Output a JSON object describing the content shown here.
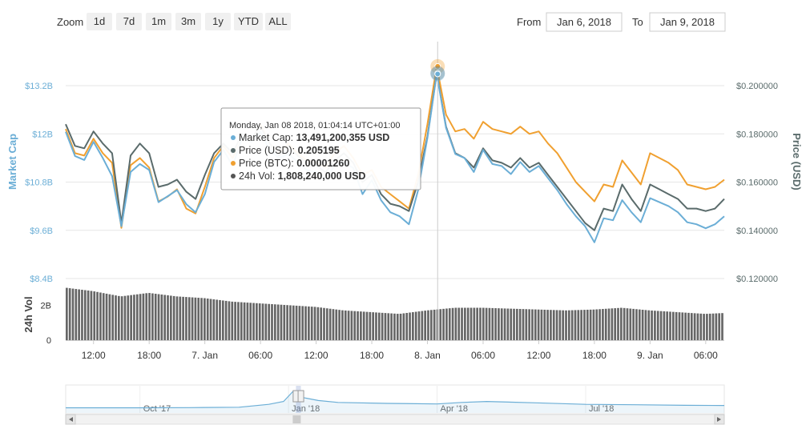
{
  "toolbar": {
    "zoom_label": "Zoom",
    "zoom_buttons": [
      "1d",
      "7d",
      "1m",
      "3m",
      "1y",
      "YTD",
      "ALL"
    ],
    "from_label": "From",
    "from_value": "Jan 6, 2018",
    "to_label": "To",
    "to_value": "Jan 9, 2018"
  },
  "tooltip": {
    "header": "Monday, Jan 08 2018, 01:04:14 UTC+01:00",
    "rows": [
      {
        "label": "Market Cap: ",
        "value": "13,491,200,355 USD",
        "color": "#6baed6"
      },
      {
        "label": "Price (USD): ",
        "value": "0.205195",
        "color": "#5a6b6b"
      },
      {
        "label": "Price (BTC): ",
        "value": "0.00001260",
        "color": "#f0a030"
      },
      {
        "label": "24h Vol: ",
        "value": "1,808,240,000 USD",
        "color": "#555555"
      }
    ]
  },
  "colors": {
    "market_cap": "#6baed6",
    "price_usd": "#5a6b6b",
    "price_btc": "#f0a030",
    "volume": "#666666",
    "navigator": "#6baed6",
    "left_axis": "#6baed6",
    "right_axis": "#5a6b6b"
  },
  "chart_data": {
    "type": "line",
    "x_range": [
      "Jan 6, 2018 09:00",
      "Jan 9, 2018 08:00"
    ],
    "left_axis": {
      "title": "Market Cap",
      "ticks": [
        "$13.2B",
        "$12B",
        "$10.8B",
        "$9.6B",
        "$8.4B"
      ],
      "tick_values": [
        13.2,
        12.0,
        10.8,
        9.6,
        8.4
      ],
      "range": [
        8.4,
        13.2
      ]
    },
    "right_axis": {
      "title": "Price (USD)",
      "ticks": [
        "$0.200000",
        "$0.180000",
        "$0.160000",
        "$0.140000",
        "$0.120000"
      ],
      "tick_values": [
        0.2,
        0.18,
        0.16,
        0.14,
        0.12
      ],
      "range": [
        0.12,
        0.2
      ]
    },
    "volume_axis": {
      "title": "24h Vol",
      "ticks": [
        "2B",
        "0"
      ],
      "tick_values": [
        2,
        0
      ],
      "range": [
        0,
        3.2
      ]
    },
    "x_ticks": [
      "12:00",
      "18:00",
      "7. Jan",
      "06:00",
      "12:00",
      "18:00",
      "8. Jan",
      "06:00",
      "12:00",
      "18:00",
      "9. Jan",
      "06:00"
    ],
    "x_tick_hours": [
      12,
      18,
      24,
      30,
      36,
      42,
      48,
      54,
      60,
      66,
      72,
      78
    ],
    "x_hour_range": [
      9,
      80
    ],
    "crosshair_hour": 49.1,
    "series": [
      {
        "name": "Market Cap",
        "key": "market_cap",
        "axis": "left",
        "unit": "B USD",
        "hours": [
          9,
          10,
          11,
          12,
          13,
          14,
          15,
          16,
          17,
          18,
          19,
          20,
          21,
          22,
          23,
          24,
          25,
          26,
          27,
          28,
          29,
          30,
          31,
          32,
          33,
          34,
          35,
          36,
          37,
          38,
          39,
          40,
          41,
          42,
          43,
          44,
          45,
          46,
          47,
          48,
          49,
          50,
          51,
          52,
          53,
          54,
          55,
          56,
          57,
          58,
          59,
          60,
          61,
          62,
          63,
          64,
          65,
          66,
          67,
          68,
          69,
          70,
          71,
          72,
          73,
          74,
          75,
          76,
          77,
          78,
          79,
          80
        ],
        "values": [
          12.05,
          11.45,
          11.35,
          11.8,
          11.4,
          10.95,
          9.7,
          11.05,
          11.25,
          11.1,
          10.3,
          10.45,
          10.6,
          10.25,
          10.05,
          10.5,
          11.3,
          11.6,
          11.2,
          11.9,
          11.8,
          12.05,
          11.6,
          11.4,
          11.5,
          11.3,
          11.1,
          11.05,
          10.9,
          11.2,
          11.3,
          11.15,
          10.5,
          10.85,
          10.35,
          10.05,
          9.95,
          9.75,
          10.6,
          11.9,
          13.49,
          12.15,
          11.5,
          11.4,
          11.05,
          11.6,
          11.25,
          11.2,
          11.0,
          11.3,
          11.05,
          11.2,
          10.9,
          10.6,
          10.25,
          9.95,
          9.7,
          9.3,
          9.9,
          9.85,
          10.35,
          10.05,
          9.8,
          10.4,
          10.3,
          10.2,
          10.05,
          9.8,
          9.75,
          9.65,
          9.75,
          9.95
        ]
      },
      {
        "name": "Price (USD)",
        "key": "price_usd",
        "axis": "right",
        "unit": "USD",
        "hours": [
          9,
          10,
          11,
          12,
          13,
          14,
          15,
          16,
          17,
          18,
          19,
          20,
          21,
          22,
          23,
          24,
          25,
          26,
          27,
          28,
          29,
          30,
          31,
          32,
          33,
          34,
          35,
          36,
          37,
          38,
          39,
          40,
          41,
          42,
          43,
          44,
          45,
          46,
          47,
          48,
          49,
          50,
          51,
          52,
          53,
          54,
          55,
          56,
          57,
          58,
          59,
          60,
          61,
          62,
          63,
          64,
          65,
          66,
          67,
          68,
          69,
          70,
          71,
          72,
          73,
          74,
          75,
          76,
          77,
          78,
          79,
          80
        ],
        "values": [
          0.184,
          0.175,
          0.174,
          0.181,
          0.176,
          0.172,
          0.143,
          0.171,
          0.176,
          0.172,
          0.158,
          0.159,
          0.161,
          0.156,
          0.153,
          0.163,
          0.172,
          0.176,
          0.172,
          0.18,
          0.178,
          0.183,
          0.176,
          0.171,
          0.175,
          0.171,
          0.168,
          0.167,
          0.164,
          0.169,
          0.172,
          0.168,
          0.16,
          0.163,
          0.155,
          0.151,
          0.15,
          0.148,
          0.16,
          0.179,
          0.205195,
          0.183,
          0.172,
          0.17,
          0.166,
          0.174,
          0.169,
          0.168,
          0.166,
          0.17,
          0.166,
          0.168,
          0.163,
          0.158,
          0.153,
          0.148,
          0.143,
          0.14,
          0.149,
          0.148,
          0.159,
          0.153,
          0.148,
          0.159,
          0.157,
          0.155,
          0.153,
          0.149,
          0.149,
          0.148,
          0.149,
          0.153
        ]
      },
      {
        "name": "Price (BTC)",
        "key": "price_btc",
        "axis": "right",
        "unit": "BTC (plotted on shared scale)",
        "hours": [
          9,
          10,
          11,
          12,
          13,
          14,
          15,
          16,
          17,
          18,
          19,
          20,
          21,
          22,
          23,
          24,
          25,
          26,
          27,
          28,
          29,
          30,
          31,
          32,
          33,
          34,
          35,
          36,
          37,
          38,
          39,
          40,
          41,
          42,
          43,
          44,
          45,
          46,
          47,
          48,
          49,
          50,
          51,
          52,
          53,
          54,
          55,
          56,
          57,
          58,
          59,
          60,
          61,
          62,
          63,
          64,
          65,
          66,
          67,
          68,
          69,
          70,
          71,
          72,
          73,
          74,
          75,
          76,
          77,
          78,
          79,
          80
        ],
        "values": [
          0.182,
          0.172,
          0.171,
          0.178,
          0.172,
          0.168,
          0.141,
          0.167,
          0.17,
          0.166,
          0.152,
          0.154,
          0.157,
          0.149,
          0.147,
          0.158,
          0.17,
          0.175,
          0.17,
          0.178,
          0.177,
          0.184,
          0.176,
          0.172,
          0.176,
          0.172,
          0.169,
          0.168,
          0.166,
          0.172,
          0.175,
          0.17,
          0.163,
          0.165,
          0.158,
          0.155,
          0.152,
          0.149,
          0.163,
          0.184,
          0.208,
          0.188,
          0.181,
          0.182,
          0.178,
          0.185,
          0.182,
          0.181,
          0.18,
          0.183,
          0.18,
          0.181,
          0.176,
          0.172,
          0.166,
          0.16,
          0.156,
          0.152,
          0.159,
          0.158,
          0.169,
          0.164,
          0.159,
          0.172,
          0.17,
          0.168,
          0.165,
          0.159,
          0.158,
          0.157,
          0.158,
          0.161
        ]
      },
      {
        "name": "24h Vol",
        "key": "volume",
        "type": "bar",
        "axis": "volume",
        "unit": "B USD",
        "hours": [
          9,
          12,
          15,
          18,
          21,
          24,
          27,
          30,
          33,
          36,
          39,
          42,
          45,
          48,
          51,
          54,
          57,
          60,
          63,
          66,
          69,
          72,
          75,
          78,
          80
        ],
        "values": [
          3.0,
          2.8,
          2.5,
          2.7,
          2.5,
          2.4,
          2.2,
          2.1,
          2.0,
          1.9,
          1.7,
          1.6,
          1.5,
          1.7,
          1.85,
          1.85,
          1.8,
          1.75,
          1.7,
          1.75,
          1.85,
          1.7,
          1.6,
          1.5,
          1.55
        ]
      }
    ],
    "navigator": {
      "x_ticks": [
        "Oct '17",
        "Jan '18",
        "Apr '18",
        "Jul '18"
      ],
      "x_tick_months": [
        0,
        3,
        6,
        9
      ],
      "month_range": [
        -1.5,
        11.8
      ],
      "selected_range": [
        "Jan 6, 2018",
        "Jan 9, 2018"
      ],
      "months": [
        -1.5,
        0,
        1,
        2,
        2.6,
        2.9,
        3.1,
        3.3,
        3.6,
        4,
        5,
        6,
        6.5,
        7,
        8,
        9,
        10,
        11,
        11.8
      ],
      "values": [
        0.02,
        0.02,
        0.03,
        0.05,
        0.2,
        0.35,
        0.9,
        0.55,
        0.4,
        0.3,
        0.25,
        0.22,
        0.3,
        0.35,
        0.28,
        0.2,
        0.18,
        0.15,
        0.14
      ]
    }
  }
}
